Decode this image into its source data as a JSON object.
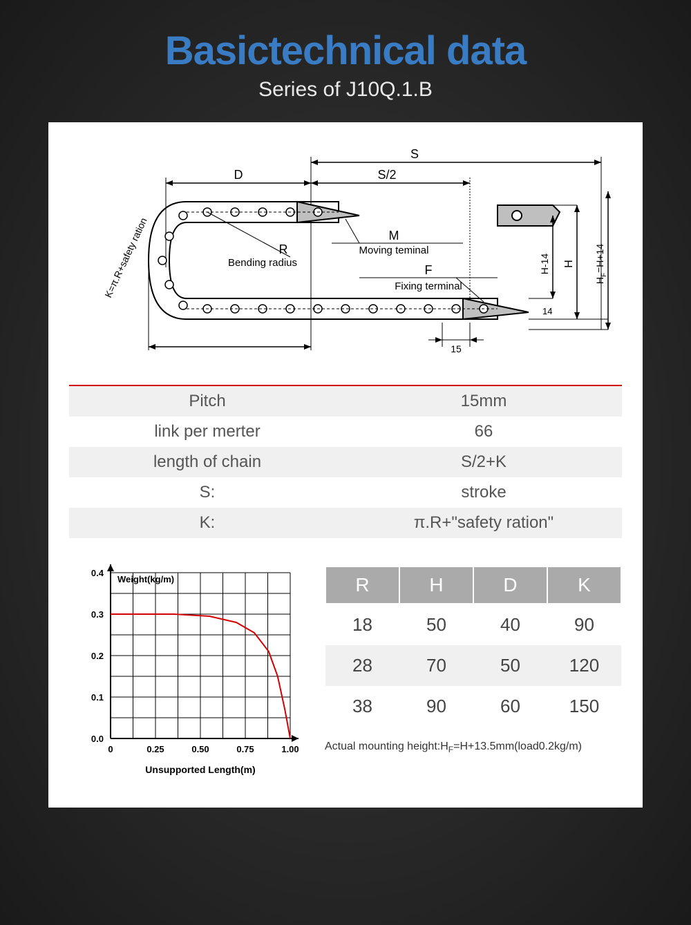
{
  "header": {
    "title": "Basictechnical data",
    "subtitle": "Series of J10Q.1.B",
    "title_color": "#3a7cc4",
    "subtitle_color": "#e8e8e8"
  },
  "diagram": {
    "labels": {
      "S": "S",
      "S2": "S/2",
      "D": "D",
      "R": "R",
      "R_desc": "Bending radius",
      "M": "M",
      "M_desc": "Moving teminal",
      "F": "F",
      "F_desc": "Fixing terminal",
      "H14a": "H-14",
      "H": "H",
      "HF": "H",
      "HF_sub": "F",
      "HF_rest": "=H+14",
      "K_label": "K=π.R+safety ration",
      "dim15": "15",
      "dim14": "14"
    },
    "stroke_color": "#000000",
    "fill_gray": "#bfbfbf"
  },
  "spec_table": {
    "rows": [
      {
        "label": "Pitch",
        "value": "15mm",
        "alt": true
      },
      {
        "label": "link per merter",
        "value": "66",
        "alt": false
      },
      {
        "label": "length of chain",
        "value": "S/2+K",
        "alt": true
      },
      {
        "label": "S:",
        "value": "stroke",
        "alt": false
      },
      {
        "label": "K:",
        "value": "π.R+\"safety ration\"",
        "alt": true
      }
    ],
    "redline_color": "#d40000",
    "alt_bg": "#f0f0f0",
    "text_color": "#555555",
    "font_size": 24
  },
  "chart": {
    "type": "line",
    "title": "Weight(kg/m)",
    "xlabel": "Unsupported Length(m)",
    "xlim": [
      0,
      1.0
    ],
    "ylim": [
      0.0,
      0.4
    ],
    "xticks": [
      0,
      0.25,
      0.5,
      0.75,
      1.0
    ],
    "yticks": [
      0.0,
      0.1,
      0.2,
      0.3,
      0.4
    ],
    "grid_color": "#000000",
    "axis_color": "#000000",
    "line_color": "#d40000",
    "line_width": 2,
    "background": "#ffffff",
    "series": {
      "x": [
        0,
        0.35,
        0.55,
        0.7,
        0.8,
        0.88,
        0.93,
        0.97,
        1.0
      ],
      "y": [
        0.3,
        0.3,
        0.295,
        0.28,
        0.255,
        0.21,
        0.15,
        0.07,
        0.0
      ]
    },
    "title_fontsize": 13,
    "tick_fontsize": 13,
    "label_fontsize": 14
  },
  "dim_table": {
    "columns": [
      "R",
      "H",
      "D",
      "K"
    ],
    "rows": [
      [
        18,
        50,
        40,
        90
      ],
      [
        28,
        70,
        50,
        120
      ],
      [
        38,
        90,
        60,
        150
      ]
    ],
    "header_bg": "#aaaaaa",
    "header_color": "#ffffff",
    "text_color": "#444444",
    "alt_bg": "#f0f0f0",
    "font_size": 26
  },
  "footnote": {
    "text_prefix": "Actual mounting height:H",
    "sub": "F",
    "text_rest": "=H+13.5mm(load0.2kg/m)"
  }
}
